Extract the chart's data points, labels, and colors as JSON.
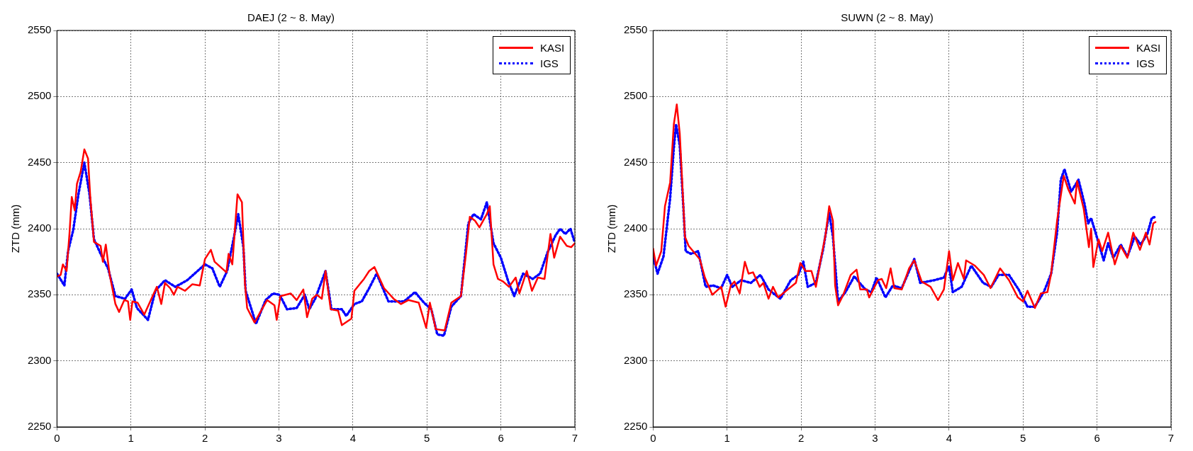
{
  "chart_data": [
    {
      "type": "line",
      "title": "DAEJ (2 ~ 8. May)",
      "ylabel": "ZTD (mm)",
      "xlim": [
        0,
        7
      ],
      "xticks": [
        0,
        1,
        2,
        3,
        4,
        5,
        6,
        7
      ],
      "ylim": [
        2250,
        2550
      ],
      "yticks": [
        2250,
        2300,
        2350,
        2400,
        2450,
        2500,
        2550
      ],
      "grid": true,
      "legend": "top right",
      "series": [
        {
          "name": "KASI",
          "color": "#ff0000",
          "line_style": "solid",
          "x": [
            0,
            0.05,
            0.08,
            0.13,
            0.17,
            0.2,
            0.24,
            0.27,
            0.32,
            0.37,
            0.42,
            0.45,
            0.5,
            0.59,
            0.62,
            0.66,
            0.71,
            0.79,
            0.84,
            0.91,
            0.96,
            0.99,
            1.02,
            1.09,
            1.18,
            1.26,
            1.35,
            1.41,
            1.46,
            1.53,
            1.58,
            1.63,
            1.73,
            1.83,
            1.93,
            2.0,
            2.08,
            2.13,
            2.29,
            2.32,
            2.37,
            2.44,
            2.5,
            2.54,
            2.57,
            2.67,
            2.77,
            2.84,
            2.94,
            2.97,
            3.02,
            3.16,
            3.24,
            3.33,
            3.38,
            3.45,
            3.51,
            3.58,
            3.63,
            3.7,
            3.8,
            3.85,
            3.98,
            4.02,
            4.15,
            4.22,
            4.29,
            4.42,
            4.55,
            4.65,
            4.75,
            4.89,
            4.99,
            5.04,
            5.12,
            5.24,
            5.33,
            5.46,
            5.53,
            5.58,
            5.65,
            5.71,
            5.81,
            5.85,
            5.9,
            5.96,
            6.03,
            6.11,
            6.2,
            6.25,
            6.35,
            6.42,
            6.5,
            6.59,
            6.67,
            6.72,
            6.8,
            6.89,
            6.95,
            7.0
          ],
          "values": [
            2364,
            2365,
            2373,
            2368,
            2397,
            2424,
            2414,
            2434,
            2443,
            2460,
            2453,
            2424,
            2390,
            2387,
            2375,
            2388,
            2366,
            2343,
            2337,
            2346,
            2345,
            2331,
            2345,
            2344,
            2335,
            2345,
            2356,
            2343,
            2359,
            2355,
            2350,
            2356,
            2353,
            2358,
            2357,
            2377,
            2384,
            2375,
            2367,
            2381,
            2373,
            2426,
            2420,
            2359,
            2340,
            2329,
            2339,
            2346,
            2342,
            2331,
            2349,
            2351,
            2346,
            2354,
            2333,
            2347,
            2350,
            2347,
            2368,
            2339,
            2338,
            2327,
            2332,
            2353,
            2362,
            2368,
            2371,
            2355,
            2347,
            2343,
            2346,
            2344,
            2325,
            2344,
            2324,
            2323,
            2344,
            2349,
            2382,
            2409,
            2406,
            2401,
            2411,
            2417,
            2373,
            2362,
            2360,
            2356,
            2363,
            2351,
            2368,
            2353,
            2363,
            2362,
            2396,
            2378,
            2394,
            2387,
            2386,
            2389
          ]
        },
        {
          "name": "IGS",
          "color": "#0000ff",
          "line_style": "dotted",
          "x": [
            0,
            0.1,
            0.15,
            0.22,
            0.29,
            0.37,
            0.44,
            0.5,
            0.59,
            0.69,
            0.79,
            0.92,
            1.01,
            1.08,
            1.23,
            1.33,
            1.46,
            1.6,
            1.76,
            1.9,
            2.0,
            2.1,
            2.2,
            2.3,
            2.39,
            2.45,
            2.52,
            2.55,
            2.69,
            2.82,
            2.92,
            3.01,
            3.11,
            3.24,
            3.35,
            3.41,
            3.49,
            3.63,
            3.71,
            3.85,
            3.91,
            4.02,
            4.12,
            4.22,
            4.32,
            4.48,
            4.69,
            4.84,
            4.96,
            5.06,
            5.14,
            5.23,
            5.33,
            5.46,
            5.56,
            5.63,
            5.73,
            5.81,
            5.9,
            6.0,
            6.1,
            6.18,
            6.3,
            6.43,
            6.53,
            6.63,
            6.74,
            6.8,
            6.87,
            6.94,
            6.99
          ],
          "values": [
            2366,
            2357,
            2383,
            2399,
            2426,
            2450,
            2426,
            2392,
            2381,
            2370,
            2349,
            2347,
            2354,
            2340,
            2331,
            2353,
            2361,
            2356,
            2361,
            2368,
            2373,
            2370,
            2356,
            2368,
            2393,
            2411,
            2386,
            2353,
            2328,
            2346,
            2351,
            2350,
            2339,
            2340,
            2350,
            2339,
            2347,
            2368,
            2339,
            2339,
            2334,
            2343,
            2345,
            2355,
            2366,
            2345,
            2345,
            2352,
            2344,
            2339,
            2320,
            2319,
            2341,
            2349,
            2404,
            2411,
            2407,
            2420,
            2389,
            2378,
            2360,
            2349,
            2366,
            2362,
            2366,
            2382,
            2395,
            2400,
            2396,
            2400,
            2391
          ]
        }
      ]
    },
    {
      "type": "line",
      "title": "SUWN (2 ~ 8. May)",
      "ylabel": "ZTD (mm)",
      "xlim": [
        0,
        7
      ],
      "xticks": [
        0,
        1,
        2,
        3,
        4,
        5,
        6,
        7
      ],
      "ylim": [
        2250,
        2550
      ],
      "yticks": [
        2250,
        2300,
        2350,
        2400,
        2450,
        2500,
        2550
      ],
      "grid": true,
      "legend": "top right",
      "series": [
        {
          "name": "KASI",
          "color": "#ff0000",
          "line_style": "solid",
          "x": [
            0,
            0.04,
            0.11,
            0.16,
            0.23,
            0.28,
            0.32,
            0.36,
            0.39,
            0.43,
            0.48,
            0.63,
            0.7,
            0.8,
            0.92,
            0.98,
            1.05,
            1.1,
            1.17,
            1.24,
            1.29,
            1.35,
            1.44,
            1.49,
            1.56,
            1.62,
            1.69,
            1.82,
            1.93,
            1.99,
            2.06,
            2.14,
            2.2,
            2.26,
            2.33,
            2.38,
            2.43,
            2.46,
            2.5,
            2.57,
            2.67,
            2.75,
            2.8,
            2.89,
            2.92,
            3.04,
            3.09,
            3.15,
            3.21,
            3.26,
            3.36,
            3.46,
            3.53,
            3.63,
            3.75,
            3.85,
            3.93,
            4.0,
            4.05,
            4.12,
            4.2,
            4.23,
            4.35,
            4.47,
            4.56,
            4.69,
            4.81,
            4.93,
            5.0,
            5.06,
            5.16,
            5.24,
            5.33,
            5.38,
            5.46,
            5.55,
            5.61,
            5.7,
            5.73,
            5.82,
            5.89,
            5.92,
            5.95,
            6.02,
            6.07,
            6.15,
            6.24,
            6.32,
            6.41,
            6.49,
            6.58,
            6.66,
            6.71,
            6.76,
            6.79
          ],
          "values": [
            2385,
            2372,
            2383,
            2417,
            2435,
            2479,
            2494,
            2472,
            2439,
            2394,
            2387,
            2377,
            2363,
            2350,
            2356,
            2341,
            2357,
            2360,
            2351,
            2375,
            2366,
            2367,
            2356,
            2359,
            2347,
            2356,
            2348,
            2354,
            2359,
            2374,
            2368,
            2368,
            2356,
            2375,
            2395,
            2417,
            2406,
            2357,
            2342,
            2350,
            2365,
            2369,
            2354,
            2354,
            2348,
            2361,
            2362,
            2355,
            2370,
            2355,
            2354,
            2370,
            2376,
            2360,
            2356,
            2346,
            2354,
            2383,
            2361,
            2374,
            2362,
            2376,
            2372,
            2365,
            2355,
            2370,
            2361,
            2348,
            2345,
            2353,
            2340,
            2351,
            2352,
            2366,
            2406,
            2440,
            2430,
            2419,
            2436,
            2415,
            2386,
            2400,
            2371,
            2392,
            2383,
            2397,
            2373,
            2387,
            2378,
            2397,
            2384,
            2397,
            2388,
            2404,
            2405
          ]
        },
        {
          "name": "IGS",
          "color": "#0000ff",
          "line_style": "dotted",
          "x": [
            0,
            0.06,
            0.14,
            0.23,
            0.28,
            0.31,
            0.36,
            0.41,
            0.44,
            0.51,
            0.61,
            0.71,
            0.81,
            0.92,
            1.0,
            1.07,
            1.19,
            1.32,
            1.45,
            1.56,
            1.72,
            1.86,
            1.96,
            2.03,
            2.09,
            2.2,
            2.3,
            2.38,
            2.43,
            2.5,
            2.6,
            2.72,
            2.79,
            2.87,
            2.95,
            3.02,
            3.14,
            3.24,
            3.36,
            3.53,
            3.61,
            3.8,
            3.93,
            4.0,
            4.05,
            4.17,
            4.3,
            4.46,
            4.57,
            4.67,
            4.81,
            4.94,
            5.06,
            5.16,
            5.28,
            5.38,
            5.46,
            5.51,
            5.56,
            5.65,
            5.75,
            5.83,
            5.88,
            5.92,
            5.98,
            6.09,
            6.15,
            6.22,
            6.32,
            6.41,
            6.51,
            6.59,
            6.68,
            6.74,
            6.79
          ],
          "values": [
            2379,
            2366,
            2379,
            2423,
            2461,
            2479,
            2463,
            2415,
            2383,
            2381,
            2383,
            2356,
            2357,
            2355,
            2365,
            2356,
            2361,
            2359,
            2365,
            2354,
            2347,
            2361,
            2365,
            2375,
            2356,
            2359,
            2385,
            2412,
            2394,
            2345,
            2352,
            2364,
            2359,
            2354,
            2352,
            2363,
            2348,
            2357,
            2355,
            2377,
            2359,
            2361,
            2363,
            2372,
            2352,
            2356,
            2372,
            2359,
            2356,
            2365,
            2365,
            2354,
            2341,
            2341,
            2352,
            2366,
            2397,
            2437,
            2445,
            2428,
            2437,
            2419,
            2404,
            2408,
            2397,
            2376,
            2389,
            2378,
            2388,
            2379,
            2394,
            2388,
            2396,
            2408,
            2409
          ]
        }
      ]
    }
  ]
}
